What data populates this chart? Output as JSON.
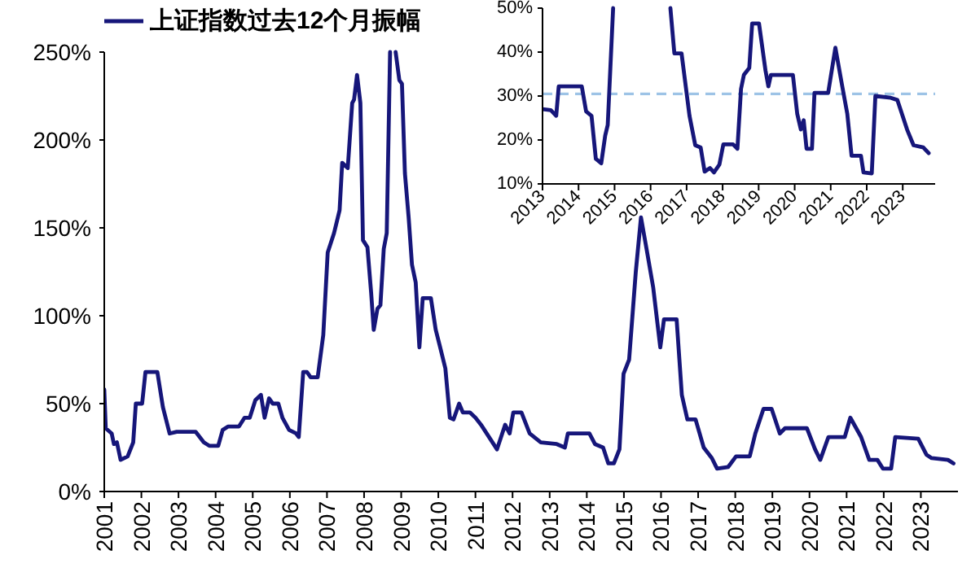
{
  "chart_data": [
    {
      "type": "line",
      "xlim": [
        2001,
        2024
      ],
      "ylim": [
        0,
        250
      ],
      "xticks": [
        2001,
        2002,
        2003,
        2004,
        2005,
        2006,
        2007,
        2008,
        2009,
        2010,
        2011,
        2012,
        2013,
        2014,
        2015,
        2016,
        2017,
        2018,
        2019,
        2020,
        2021,
        2022,
        2023
      ],
      "yticks": [
        {
          "value": 0,
          "label": "0%"
        },
        {
          "value": 50,
          "label": "50%"
        },
        {
          "value": 100,
          "label": "100%"
        },
        {
          "value": 150,
          "label": "150%"
        },
        {
          "value": 200,
          "label": "200%"
        },
        {
          "value": 250,
          "label": "250%"
        }
      ],
      "legend": "top left",
      "series": [
        {
          "name": "上证指数过去12个月振幅",
          "color": "#16167a",
          "x": [
            2001.0,
            2001.04,
            2001.2,
            2001.26,
            2001.34,
            2001.44,
            2001.63,
            2001.78,
            2001.85,
            2002.02,
            2002.11,
            2002.43,
            2002.58,
            2002.76,
            2002.95,
            2003.09,
            2003.46,
            2003.68,
            2003.83,
            2004.07,
            2004.19,
            2004.34,
            2004.63,
            2004.78,
            2004.92,
            2005.07,
            2005.22,
            2005.32,
            2005.44,
            2005.54,
            2005.69,
            2005.8,
            2005.98,
            2006.17,
            2006.24,
            2006.36,
            2006.46,
            2006.56,
            2006.75,
            2006.9,
            2007.02,
            2007.19,
            2007.34,
            2007.41,
            2007.56,
            2007.68,
            2007.73,
            2007.81,
            2007.9,
            2007.97,
            2008.09,
            2008.19,
            2008.26,
            2008.36,
            2008.44,
            2008.53,
            2008.61,
            2008.7,
            2008.85,
            2008.95,
            2009.02,
            2009.1,
            2009.2,
            2009.29,
            2009.39,
            2009.49,
            2009.58,
            2009.8,
            2009.93,
            2010.05,
            2010.19,
            2010.31,
            2010.41,
            2010.56,
            2010.66,
            2010.85,
            2011.0,
            2011.15,
            2011.58,
            2011.8,
            2011.92,
            2012.02,
            2012.24,
            2012.46,
            2012.76,
            2013.19,
            2013.41,
            2013.49,
            2014.07,
            2014.22,
            2014.44,
            2014.58,
            2014.73,
            2014.88,
            2014.99,
            2015.14,
            2015.32,
            2015.46,
            2015.61,
            2015.79,
            2015.98,
            2016.08,
            2016.42,
            2016.56,
            2016.71,
            2016.93,
            2017.15,
            2017.37,
            2017.51,
            2017.81,
            2018.02,
            2018.39,
            2018.54,
            2018.76,
            2018.98,
            2019.2,
            2019.34,
            2019.93,
            2020.15,
            2020.29,
            2020.51,
            2020.95,
            2021.1,
            2021.39,
            2021.61,
            2021.83,
            2021.98,
            2022.2,
            2022.31,
            2022.93,
            2023.15,
            2023.29,
            2023.73,
            2023.88
          ],
          "values": [
            58,
            36,
            33,
            27,
            28,
            18,
            20,
            28,
            50,
            50,
            68,
            68,
            48,
            33,
            34,
            34,
            34,
            28,
            26,
            26,
            35,
            37,
            37,
            42,
            42,
            52,
            55,
            42,
            53,
            50,
            50,
            42,
            35,
            33,
            31,
            68,
            68,
            65,
            65,
            89,
            136,
            147,
            160,
            187,
            184,
            221,
            223,
            237,
            221,
            143,
            139,
            113,
            92,
            104,
            106,
            138,
            147,
            250,
            250,
            234,
            232,
            181,
            156,
            129,
            119,
            82,
            110,
            110,
            92,
            82,
            70,
            42,
            41,
            50,
            45,
            45,
            42,
            38,
            24,
            38,
            33,
            45,
            45,
            33,
            28,
            27,
            25,
            33,
            33,
            27,
            25,
            16,
            16,
            24,
            67,
            75,
            125,
            156,
            138,
            116,
            82,
            98,
            98,
            55,
            41,
            41,
            25,
            19,
            13,
            14,
            20,
            20,
            33,
            47,
            47,
            33,
            36,
            36,
            24,
            18,
            31,
            31,
            42,
            31,
            18,
            18,
            13,
            13,
            31,
            30,
            21,
            19,
            18,
            16
          ]
        }
      ]
    },
    {
      "type": "line",
      "xlim": [
        2013,
        2023.9
      ],
      "ylim": [
        10,
        50
      ],
      "xticks": [
        2013,
        2014,
        2015,
        2016,
        2017,
        2018,
        2019,
        2020,
        2021,
        2022,
        2023
      ],
      "yticks": [
        {
          "value": 10,
          "label": "10%"
        },
        {
          "value": 20,
          "label": "20%"
        },
        {
          "value": 30,
          "label": "30%"
        },
        {
          "value": 40,
          "label": "40%"
        },
        {
          "value": 50,
          "label": "50%"
        }
      ],
      "ref_lines": [
        {
          "axis": "y",
          "value": 30.5,
          "color": "#9dc3e6",
          "line_style": "dashed"
        }
      ],
      "series": [
        {
          "color": "#16167a",
          "x": [
            2013.0,
            2013.23,
            2013.38,
            2013.45,
            2014.09,
            2014.21,
            2014.36,
            2014.48,
            2014.63,
            2014.74,
            2014.81,
            2014.96,
            2016.55,
            2016.66,
            2016.86,
            2017.08,
            2017.24,
            2017.39,
            2017.5,
            2017.65,
            2017.76,
            2017.91,
            2018.02,
            2018.29,
            2018.41,
            2018.51,
            2018.59,
            2018.74,
            2018.82,
            2019.01,
            2019.19,
            2019.27,
            2019.34,
            2019.95,
            2020.07,
            2020.17,
            2020.25,
            2020.33,
            2020.48,
            2020.55,
            2020.93,
            2021.13,
            2021.31,
            2021.46,
            2021.58,
            2021.84,
            2021.91,
            2022.14,
            2022.24,
            2022.67,
            2022.85,
            2023.12,
            2023.3,
            2023.57,
            2023.72
          ],
          "values": [
            27,
            26.8,
            25.5,
            32.2,
            32.2,
            26.5,
            25.5,
            15.7,
            14.7,
            21,
            23.4,
            50,
            50,
            39.7,
            39.7,
            25.5,
            18.8,
            18.3,
            12.8,
            13.6,
            12.6,
            14.4,
            19,
            19,
            18,
            31.6,
            34.8,
            36.4,
            46.5,
            46.5,
            35.8,
            32.2,
            34.8,
            34.8,
            26,
            22.4,
            24.5,
            18,
            18,
            30.7,
            30.7,
            41,
            32.7,
            26,
            16.4,
            16.4,
            12.6,
            12.4,
            30,
            29.6,
            29.1,
            22.4,
            18.8,
            18.3,
            17
          ]
        }
      ]
    }
  ]
}
